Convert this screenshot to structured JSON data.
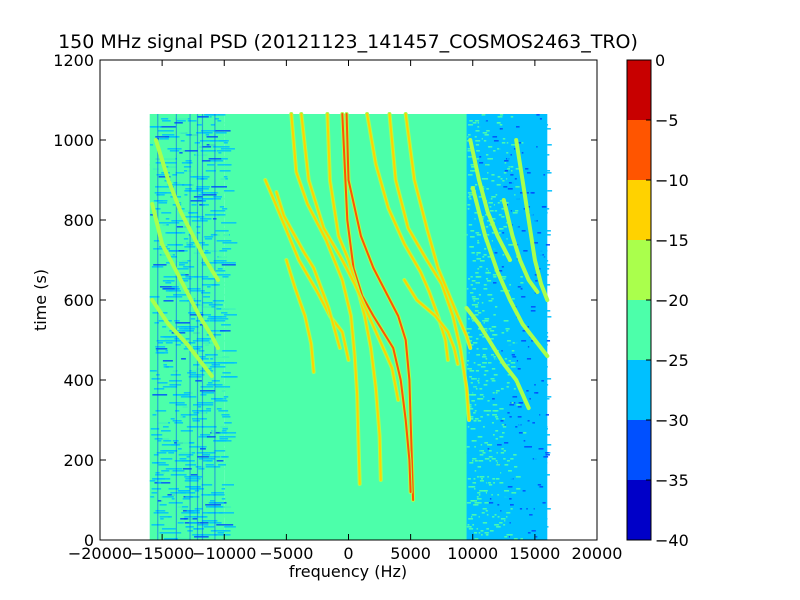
{
  "chart_data": {
    "type": "heatmap",
    "title": "150 MHz signal PSD (20121123_141457_COSMOS2463_TRO)",
    "xlabel": "frequency (Hz)",
    "ylabel": "time (s)",
    "xlim": [
      -20000,
      20000
    ],
    "ylim": [
      0,
      1200
    ],
    "xticks": [
      -20000,
      -15000,
      -10000,
      -5000,
      0,
      5000,
      10000,
      15000,
      20000
    ],
    "xtick_labels": [
      "−20000",
      "−15000",
      "−10000",
      "−5000",
      "0",
      "5000",
      "10000",
      "15000",
      "20000"
    ],
    "yticks": [
      0,
      200,
      400,
      600,
      800,
      1000,
      1200
    ],
    "ytick_labels": [
      "0",
      "200",
      "400",
      "600",
      "800",
      "1000",
      "1200"
    ],
    "data_extent": {
      "x": [
        -16000,
        16000
      ],
      "y": [
        0,
        1065
      ]
    },
    "regions": [
      {
        "x": [
          -16000,
          -10000
        ],
        "level": -25,
        "description": "noisy cyan/blue"
      },
      {
        "x": [
          -10000,
          9500
        ],
        "level": -22.5,
        "description": "green background"
      },
      {
        "x": [
          9500,
          16000
        ],
        "level": -27.5,
        "description": "blue background"
      }
    ],
    "traces": [
      {
        "peak_level": -7,
        "points": [
          [
            -150,
            1065
          ],
          [
            0,
            900
          ],
          [
            1000,
            760
          ],
          [
            2000,
            680
          ],
          [
            3000,
            620
          ],
          [
            4000,
            560
          ],
          [
            4600,
            500
          ],
          [
            4900,
            400
          ],
          [
            5000,
            300
          ],
          [
            5100,
            200
          ],
          [
            5200,
            100
          ]
        ]
      },
      {
        "peak_level": -8,
        "points": [
          [
            -500,
            1065
          ],
          [
            -100,
            800
          ],
          [
            400,
            680
          ],
          [
            1100,
            610
          ],
          [
            2000,
            560
          ],
          [
            2800,
            520
          ],
          [
            3600,
            480
          ],
          [
            4200,
            400
          ],
          [
            4600,
            300
          ],
          [
            4900,
            200
          ],
          [
            5000,
            120
          ]
        ]
      },
      {
        "peak_level": -14,
        "points": [
          [
            -1700,
            1065
          ],
          [
            -1500,
            900
          ],
          [
            -800,
            760
          ],
          [
            0,
            700
          ],
          [
            800,
            620
          ],
          [
            1300,
            560
          ],
          [
            1800,
            480
          ],
          [
            2200,
            380
          ],
          [
            2500,
            260
          ],
          [
            2600,
            150
          ]
        ]
      },
      {
        "peak_level": -14,
        "points": [
          [
            -3800,
            1065
          ],
          [
            -3200,
            900
          ],
          [
            -2000,
            780
          ],
          [
            -500,
            700
          ],
          [
            500,
            640
          ],
          [
            1500,
            570
          ],
          [
            2500,
            500
          ],
          [
            3500,
            430
          ],
          [
            4000,
            350
          ]
        ]
      },
      {
        "peak_level": -14,
        "points": [
          [
            -4600,
            1065
          ],
          [
            -4200,
            920
          ],
          [
            -3300,
            840
          ],
          [
            -1800,
            750
          ],
          [
            -500,
            650
          ],
          [
            200,
            560
          ],
          [
            500,
            460
          ],
          [
            700,
            360
          ],
          [
            800,
            250
          ],
          [
            900,
            140
          ]
        ]
      },
      {
        "peak_level": -14,
        "points": [
          [
            -6700,
            900
          ],
          [
            -6000,
            850
          ],
          [
            -4000,
            700
          ],
          [
            -2500,
            620
          ],
          [
            -1500,
            560
          ],
          [
            -500,
            520
          ],
          [
            0,
            450
          ]
        ]
      },
      {
        "peak_level": -14,
        "points": [
          [
            -5800,
            870
          ],
          [
            -5200,
            810
          ],
          [
            -3600,
            720
          ],
          [
            -2800,
            680
          ],
          [
            -1600,
            580
          ],
          [
            -700,
            480
          ]
        ]
      },
      {
        "peak_level": -14,
        "points": [
          [
            -5000,
            700
          ],
          [
            -4300,
            630
          ],
          [
            -3500,
            560
          ],
          [
            -3000,
            490
          ],
          [
            -2800,
            420
          ]
        ]
      },
      {
        "peak_level": -14,
        "points": [
          [
            1500,
            1065
          ],
          [
            2200,
            940
          ],
          [
            3200,
            830
          ],
          [
            4500,
            740
          ],
          [
            5800,
            670
          ],
          [
            6500,
            620
          ],
          [
            7200,
            560
          ],
          [
            7800,
            500
          ],
          [
            8000,
            450
          ]
        ]
      },
      {
        "peak_level": -14,
        "points": [
          [
            3300,
            1065
          ],
          [
            3800,
            900
          ],
          [
            4800,
            780
          ],
          [
            6300,
            700
          ],
          [
            7500,
            640
          ],
          [
            8400,
            560
          ],
          [
            9000,
            480
          ],
          [
            9500,
            380
          ],
          [
            9700,
            300
          ]
        ]
      },
      {
        "peak_level": -14,
        "points": [
          [
            4600,
            1065
          ],
          [
            5300,
            900
          ],
          [
            6300,
            780
          ],
          [
            7200,
            680
          ],
          [
            8000,
            620
          ],
          [
            8800,
            560
          ],
          [
            9500,
            510
          ],
          [
            9800,
            480
          ]
        ]
      },
      {
        "peak_level": -14,
        "points": [
          [
            4500,
            650
          ],
          [
            5500,
            600
          ],
          [
            7000,
            560
          ],
          [
            8000,
            520
          ],
          [
            8500,
            480
          ],
          [
            8800,
            440
          ]
        ]
      },
      {
        "peak_level": -17,
        "points": [
          [
            -15800,
            840
          ],
          [
            -15000,
            740
          ],
          [
            -14000,
            680
          ],
          [
            -13000,
            620
          ],
          [
            -12000,
            560
          ],
          [
            -11000,
            510
          ],
          [
            -10500,
            480
          ]
        ]
      },
      {
        "peak_level": -17,
        "points": [
          [
            -15500,
            1000
          ],
          [
            -14500,
            900
          ],
          [
            -13500,
            820
          ],
          [
            -12500,
            760
          ],
          [
            -11500,
            700
          ],
          [
            -10500,
            650
          ]
        ]
      },
      {
        "peak_level": -17,
        "points": [
          [
            -15800,
            600
          ],
          [
            -14500,
            540
          ],
          [
            -13000,
            490
          ],
          [
            -12000,
            450
          ],
          [
            -11000,
            410
          ]
        ]
      },
      {
        "peak_level": -17,
        "points": [
          [
            10000,
            880
          ],
          [
            11000,
            760
          ],
          [
            12000,
            670
          ],
          [
            13000,
            600
          ],
          [
            14000,
            540
          ],
          [
            15000,
            500
          ],
          [
            16000,
            460
          ]
        ]
      },
      {
        "peak_level": -17,
        "points": [
          [
            9500,
            580
          ],
          [
            10500,
            540
          ],
          [
            11500,
            490
          ],
          [
            12500,
            440
          ],
          [
            13500,
            400
          ],
          [
            14500,
            330
          ]
        ]
      },
      {
        "peak_level": -17,
        "points": [
          [
            13500,
            1000
          ],
          [
            14000,
            900
          ],
          [
            14500,
            800
          ],
          [
            15000,
            700
          ],
          [
            15500,
            640
          ],
          [
            16000,
            600
          ]
        ]
      },
      {
        "peak_level": -17,
        "points": [
          [
            12500,
            850
          ],
          [
            13200,
            760
          ],
          [
            13800,
            700
          ],
          [
            14500,
            650
          ],
          [
            15200,
            620
          ]
        ]
      },
      {
        "peak_level": -17,
        "points": [
          [
            9800,
            1000
          ],
          [
            10500,
            900
          ],
          [
            11200,
            820
          ],
          [
            12000,
            760
          ],
          [
            13000,
            700
          ]
        ]
      }
    ],
    "colorbar": {
      "ticks": [
        0,
        -5,
        -10,
        -15,
        -20,
        -25,
        -30,
        -35,
        -40
      ],
      "tick_labels": [
        "0",
        "−5",
        "−10",
        "−15",
        "−20",
        "−25",
        "−30",
        "−35",
        "−40"
      ],
      "bands": [
        {
          "range": [
            -5,
            0
          ],
          "color": "#c80000"
        },
        {
          "range": [
            -10,
            -5
          ],
          "color": "#ff5500"
        },
        {
          "range": [
            -15,
            -10
          ],
          "color": "#ffd200"
        },
        {
          "range": [
            -20,
            -15
          ],
          "color": "#aaff4c"
        },
        {
          "range": [
            -25,
            -20
          ],
          "color": "#4cffaa"
        },
        {
          "range": [
            -30,
            -25
          ],
          "color": "#00c0ff"
        },
        {
          "range": [
            -35,
            -30
          ],
          "color": "#0050ff"
        },
        {
          "range": [
            -40,
            -35
          ],
          "color": "#0000c8"
        }
      ]
    }
  }
}
